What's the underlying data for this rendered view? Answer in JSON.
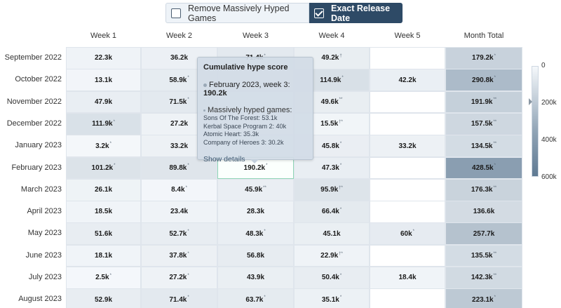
{
  "toggles": {
    "remove_hyped": {
      "label": "Remove Massively Hyped Games",
      "checked": false
    },
    "exact_release": {
      "label": "Exact Release Date",
      "checked": true
    }
  },
  "columns": [
    "Week 1",
    "Week 2",
    "Week 3",
    "Week 4",
    "Week 5",
    "Month Total"
  ],
  "legend": {
    "ticks": [
      "0",
      "200k",
      "400k",
      "600k"
    ]
  },
  "tooltip": {
    "title": "Cumulative hype score",
    "point_label": "February 2023, week 3: ",
    "point_value": "190.2k",
    "games_heading": "Massively hyped games:",
    "games": [
      "Sons Of The Forest: 53.1k",
      "Kerbal Space Program 2: 40k",
      "Atomic Heart: 35.3k",
      "Company of Heroes 3: 30.2k"
    ],
    "link": "Show details"
  },
  "chart_data": {
    "type": "heatmap",
    "title": "",
    "x": [
      "Week 1",
      "Week 2",
      "Week 3",
      "Week 4",
      "Week 5",
      "Month Total"
    ],
    "y": [
      "September 2022",
      "October 2022",
      "November 2022",
      "December 2022",
      "January 2023",
      "February 2023",
      "March 2023",
      "April 2023",
      "May 2023",
      "June 2023",
      "July 2023",
      "August 2023"
    ],
    "color_scale": {
      "min": 0,
      "max": 600000,
      "low_color": "#f5f8fb",
      "high_color": "#5f7a93"
    },
    "rows": [
      {
        "label": "September 2022",
        "cells": [
          {
            "text": "22.3k",
            "value": 22300,
            "mark": ""
          },
          {
            "text": "36.2k",
            "value": 36200,
            "mark": ""
          },
          {
            "text": "71.4k",
            "value": 71400,
            "mark": "*"
          },
          {
            "text": "49.2k",
            "value": 49200,
            "mark": "†"
          },
          null,
          {
            "text": "179.2k",
            "value": 179200,
            "mark": "*"
          }
        ]
      },
      {
        "label": "October 2022",
        "cells": [
          {
            "text": "13.1k",
            "value": 13100,
            "mark": ""
          },
          {
            "text": "58.9k",
            "value": 58900,
            "mark": "*"
          },
          {
            "text": "",
            "value": 62000,
            "mark": ""
          },
          {
            "text": "114.9k",
            "value": 114900,
            "mark": "*"
          },
          {
            "text": "42.2k",
            "value": 42200,
            "mark": ""
          },
          {
            "text": "290.8k",
            "value": 290800,
            "mark": "*"
          }
        ]
      },
      {
        "label": "November 2022",
        "cells": [
          {
            "text": "47.9k",
            "value": 47900,
            "mark": ""
          },
          {
            "text": "71.5k",
            "value": 71500,
            "mark": "*"
          },
          {
            "text": "",
            "value": 22000,
            "mark": ""
          },
          {
            "text": "49.6k",
            "value": 49600,
            "mark": "**"
          },
          null,
          {
            "text": "191.9k",
            "value": 191900,
            "mark": "**"
          }
        ]
      },
      {
        "label": "December 2022",
        "cells": [
          {
            "text": "111.9k",
            "value": 111900,
            "mark": "*"
          },
          {
            "text": "27.2k",
            "value": 27200,
            "mark": ""
          },
          {
            "text": "",
            "value": 3000,
            "mark": ""
          },
          {
            "text": "15.5k",
            "value": 15500,
            "mark": "†*"
          },
          null,
          {
            "text": "157.5k",
            "value": 157500,
            "mark": "**"
          }
        ]
      },
      {
        "label": "January 2023",
        "cells": [
          {
            "text": "3.2k",
            "value": 3200,
            "mark": "*"
          },
          {
            "text": "33.2k",
            "value": 33200,
            "mark": ""
          },
          {
            "text": "",
            "value": 20000,
            "mark": ""
          },
          {
            "text": "45.8k",
            "value": 45800,
            "mark": "*"
          },
          {
            "text": "33.2k",
            "value": 33200,
            "mark": ""
          },
          {
            "text": "134.5k",
            "value": 134500,
            "mark": "**"
          }
        ]
      },
      {
        "label": "February 2023",
        "cells": [
          {
            "text": "101.2k",
            "value": 101200,
            "mark": "*"
          },
          {
            "text": "89.8k",
            "value": 89800,
            "mark": "*"
          },
          {
            "text": "190.2k",
            "value": 190200,
            "mark": "*"
          },
          {
            "text": "47.3k",
            "value": 47300,
            "mark": "*"
          },
          null,
          {
            "text": "428.5k",
            "value": 428500,
            "mark": "*"
          }
        ]
      },
      {
        "label": "March 2023",
        "cells": [
          {
            "text": "26.1k",
            "value": 26100,
            "mark": ""
          },
          {
            "text": "8.4k",
            "value": 8400,
            "mark": "*"
          },
          {
            "text": "45.9k",
            "value": 45900,
            "mark": "**"
          },
          {
            "text": "95.9k",
            "value": 95900,
            "mark": "†*"
          },
          null,
          {
            "text": "176.3k",
            "value": 176300,
            "mark": "**"
          }
        ]
      },
      {
        "label": "April 2023",
        "cells": [
          {
            "text": "18.5k",
            "value": 18500,
            "mark": ""
          },
          {
            "text": "23.4k",
            "value": 23400,
            "mark": ""
          },
          {
            "text": "28.3k",
            "value": 28300,
            "mark": ""
          },
          {
            "text": "66.4k",
            "value": 66400,
            "mark": "*"
          },
          null,
          {
            "text": "136.6k",
            "value": 136600,
            "mark": ""
          }
        ]
      },
      {
        "label": "May 2023",
        "cells": [
          {
            "text": "51.6k",
            "value": 51600,
            "mark": ""
          },
          {
            "text": "52.7k",
            "value": 52700,
            "mark": "*"
          },
          {
            "text": "48.3k",
            "value": 48300,
            "mark": "*"
          },
          {
            "text": "45.1k",
            "value": 45100,
            "mark": ""
          },
          {
            "text": "60k",
            "value": 60000,
            "mark": "*"
          },
          {
            "text": "257.7k",
            "value": 257700,
            "mark": ""
          }
        ]
      },
      {
        "label": "June 2023",
        "cells": [
          {
            "text": "18.1k",
            "value": 18100,
            "mark": ""
          },
          {
            "text": "37.8k",
            "value": 37800,
            "mark": "*"
          },
          {
            "text": "56.8k",
            "value": 56800,
            "mark": ""
          },
          {
            "text": "22.9k",
            "value": 22900,
            "mark": "†*"
          },
          null,
          {
            "text": "135.5k",
            "value": 135500,
            "mark": "**"
          }
        ]
      },
      {
        "label": "July 2023",
        "cells": [
          {
            "text": "2.5k",
            "value": 2500,
            "mark": "*"
          },
          {
            "text": "27.2k",
            "value": 27200,
            "mark": "*"
          },
          {
            "text": "43.9k",
            "value": 43900,
            "mark": ""
          },
          {
            "text": "50.4k",
            "value": 50400,
            "mark": "*"
          },
          {
            "text": "18.4k",
            "value": 18400,
            "mark": ""
          },
          {
            "text": "142.3k",
            "value": 142300,
            "mark": "**"
          }
        ]
      },
      {
        "label": "August 2023",
        "cells": [
          {
            "text": "52.9k",
            "value": 52900,
            "mark": ""
          },
          {
            "text": "71.4k",
            "value": 71400,
            "mark": "*"
          },
          {
            "text": "63.7k",
            "value": 63700,
            "mark": "*"
          },
          {
            "text": "35.1k",
            "value": 35100,
            "mark": "*"
          },
          null,
          {
            "text": "223.1k",
            "value": 223100,
            "mark": "*"
          }
        ]
      }
    ]
  }
}
